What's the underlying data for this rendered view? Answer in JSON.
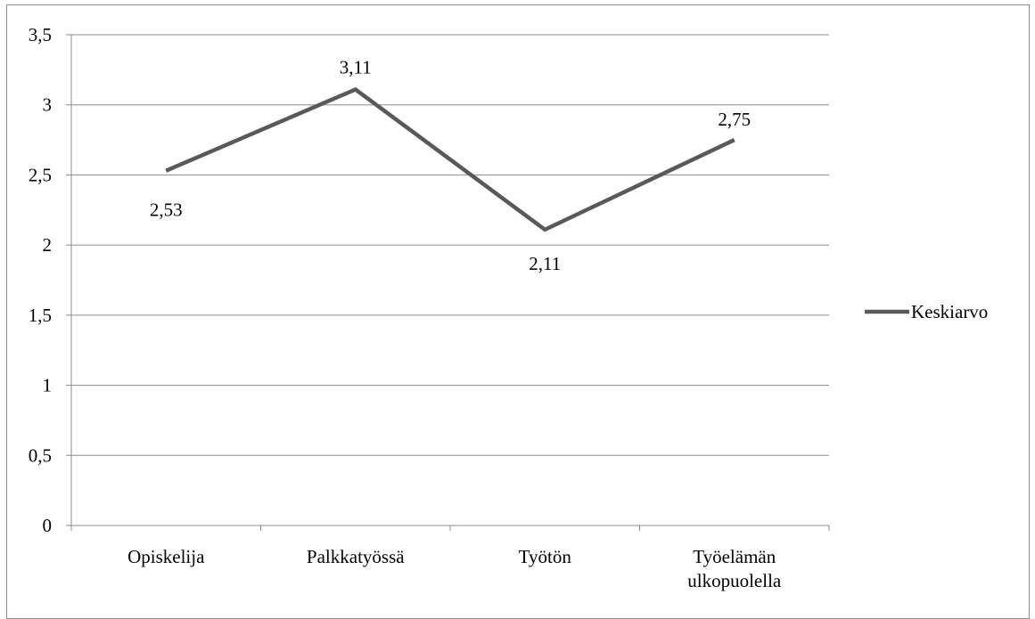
{
  "chart_data": {
    "type": "line",
    "categories": [
      [
        "Opiskelija"
      ],
      [
        "Palkkatyössä"
      ],
      [
        "Työtön"
      ],
      [
        "Työelämän",
        "ulkopuolella"
      ]
    ],
    "series": [
      {
        "name": "Keskiarvo",
        "values": [
          2.53,
          3.11,
          2.11,
          2.75
        ],
        "data_labels": [
          "2,53",
          "3,11",
          "2,11",
          "2,75"
        ],
        "color": "#595959"
      }
    ],
    "y_ticks": [
      "0",
      "0,5",
      "1",
      "1,5",
      "2",
      "2,5",
      "3",
      "3,5"
    ],
    "ylim": [
      0,
      3.5
    ],
    "grid": true,
    "legend_position": "right",
    "title": "",
    "xlabel": "",
    "ylabel": ""
  },
  "colors": {
    "gridline": "#8c8c8c",
    "axis": "#8c8c8c",
    "series_line": "#595959"
  }
}
